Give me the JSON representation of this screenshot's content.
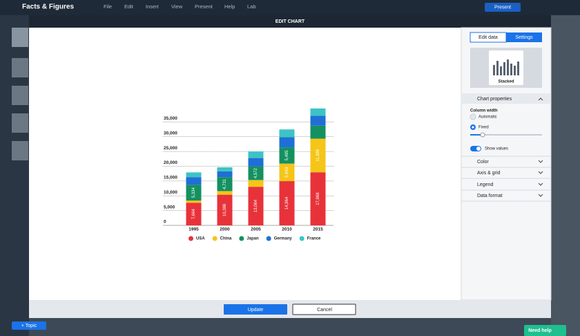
{
  "app": {
    "title": "Facts & Figures",
    "menu": [
      "File",
      "Edit",
      "Insert",
      "View",
      "Present",
      "Help",
      "Lab"
    ],
    "present_button": "Present",
    "topic_button": "+ Topic",
    "help_button": "Need help"
  },
  "dialog": {
    "title": "EDIT CHART",
    "tabs": [
      "Edit data",
      "Settings"
    ],
    "preview_label": "Stacked",
    "sections": [
      "Chart properties",
      "Color",
      "Axis & grid",
      "Legend",
      "Data format"
    ],
    "column_width": "Column width",
    "options": [
      "Automatic",
      "Fixed"
    ],
    "show_values": "Show values",
    "update": "Update",
    "cancel": "Cancel"
  },
  "chart_data": {
    "type": "stacked_bar",
    "categories": [
      "1995",
      "2000",
      "2005",
      "2010",
      "2015"
    ],
    "series": [
      {
        "name": "USA",
        "color": "#e8323a",
        "values": [
          7664,
          10386,
          13064,
          14964,
          17968
        ],
        "value_labels": [
          "7,664",
          "10,386",
          "13,064",
          "14,964",
          "17,968"
        ]
      },
      {
        "name": "China",
        "color": "#f5c518",
        "values": [
          734,
          1211,
          2286,
          5943,
          11385
        ],
        "value_labels": [
          null,
          null,
          null,
          "5,943",
          "11,385"
        ]
      },
      {
        "name": "Japan",
        "color": "#139160",
        "values": [
          5334,
          4731,
          4572,
          5495,
          4395
        ],
        "value_labels": [
          "5,334",
          "4,731",
          "4,572",
          "5,495",
          null
        ]
      },
      {
        "name": "Germany",
        "color": "#1f6fd6",
        "values": [
          2595,
          1950,
          2861,
          3417,
          3375
        ],
        "value_labels": [
          null,
          null,
          null,
          null,
          null
        ]
      },
      {
        "name": "France",
        "color": "#3cc4c4",
        "values": [
          1601,
          1365,
          2196,
          2647,
          2438
        ],
        "value_labels": [
          null,
          null,
          null,
          null,
          null
        ]
      }
    ],
    "ylim": [
      0,
      40000
    ],
    "yticks": [
      0,
      {
        "value": 5000,
        "label": "5,000"
      },
      {
        "value": 10000,
        "label": "10,000"
      },
      {
        "value": 15000,
        "label": "15,000"
      },
      {
        "value": 20000,
        "label": "20,000"
      },
      {
        "value": 25000,
        "label": "25,000"
      },
      {
        "value": 30000,
        "label": "30,000"
      },
      {
        "value": 35000,
        "label": "35,000"
      }
    ],
    "grid": true,
    "legend": "bottom"
  }
}
